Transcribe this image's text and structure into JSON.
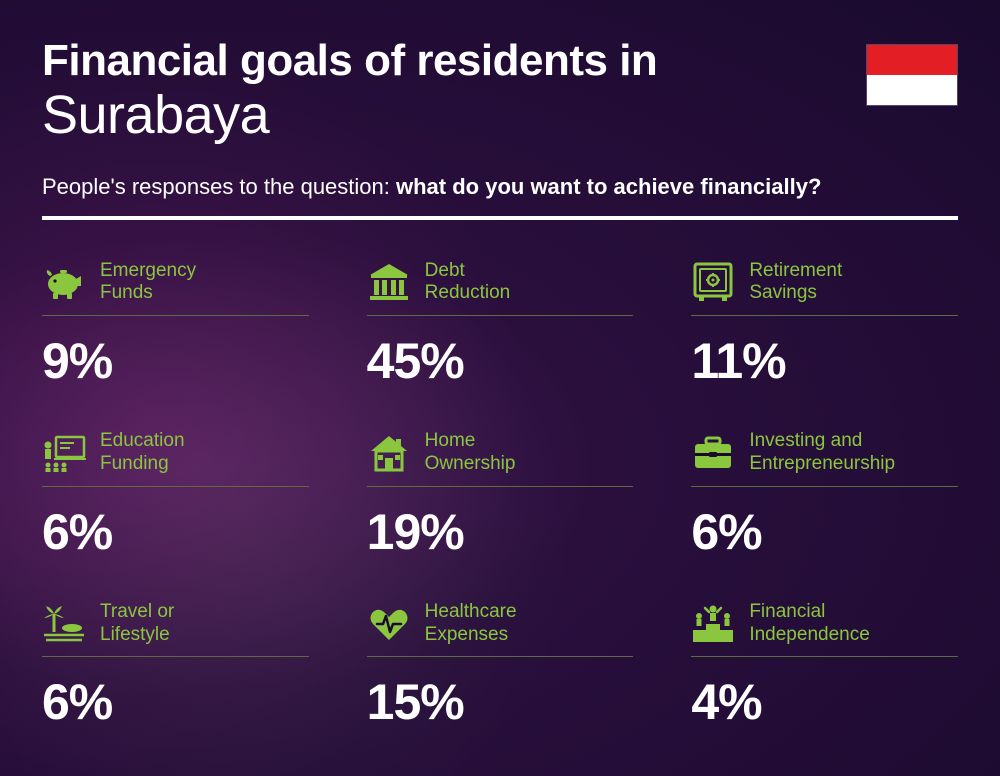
{
  "header": {
    "title_line1": "Financial goals of residents in",
    "title_line2": "Surabaya",
    "subtitle_prefix": "People's responses to the question: ",
    "subtitle_bold": "what do you want to achieve financially?"
  },
  "flag": {
    "top_color": "#e31e24",
    "bottom_color": "#ffffff"
  },
  "styling": {
    "accent_color": "#8bc63f",
    "text_color": "#ffffff",
    "divider_color": "#ffffff",
    "card_underline_color": "#5f6a3f",
    "title1_fontsize": 44,
    "title2_fontsize": 54,
    "subtitle_fontsize": 22,
    "label_fontsize": 19,
    "value_fontsize": 50,
    "background": "radial-gradient purple/violet"
  },
  "layout": {
    "grid_columns": 3,
    "grid_rows": 3
  },
  "items": [
    {
      "icon": "piggy-bank",
      "label_l1": "Emergency",
      "label_l2": "Funds",
      "value": "9%"
    },
    {
      "icon": "bank",
      "label_l1": "Debt",
      "label_l2": "Reduction",
      "value": "45%"
    },
    {
      "icon": "safe",
      "label_l1": "Retirement",
      "label_l2": "Savings",
      "value": "11%"
    },
    {
      "icon": "education",
      "label_l1": "Education",
      "label_l2": "Funding",
      "value": "6%"
    },
    {
      "icon": "house",
      "label_l1": "Home",
      "label_l2": "Ownership",
      "value": "19%"
    },
    {
      "icon": "briefcase",
      "label_l1": "Investing and",
      "label_l2": "Entrepreneurship",
      "value": "6%"
    },
    {
      "icon": "travel",
      "label_l1": "Travel or",
      "label_l2": "Lifestyle",
      "value": "6%"
    },
    {
      "icon": "healthcare",
      "label_l1": "Healthcare",
      "label_l2": "Expenses",
      "value": "15%"
    },
    {
      "icon": "podium",
      "label_l1": "Financial",
      "label_l2": "Independence",
      "value": "4%"
    }
  ]
}
